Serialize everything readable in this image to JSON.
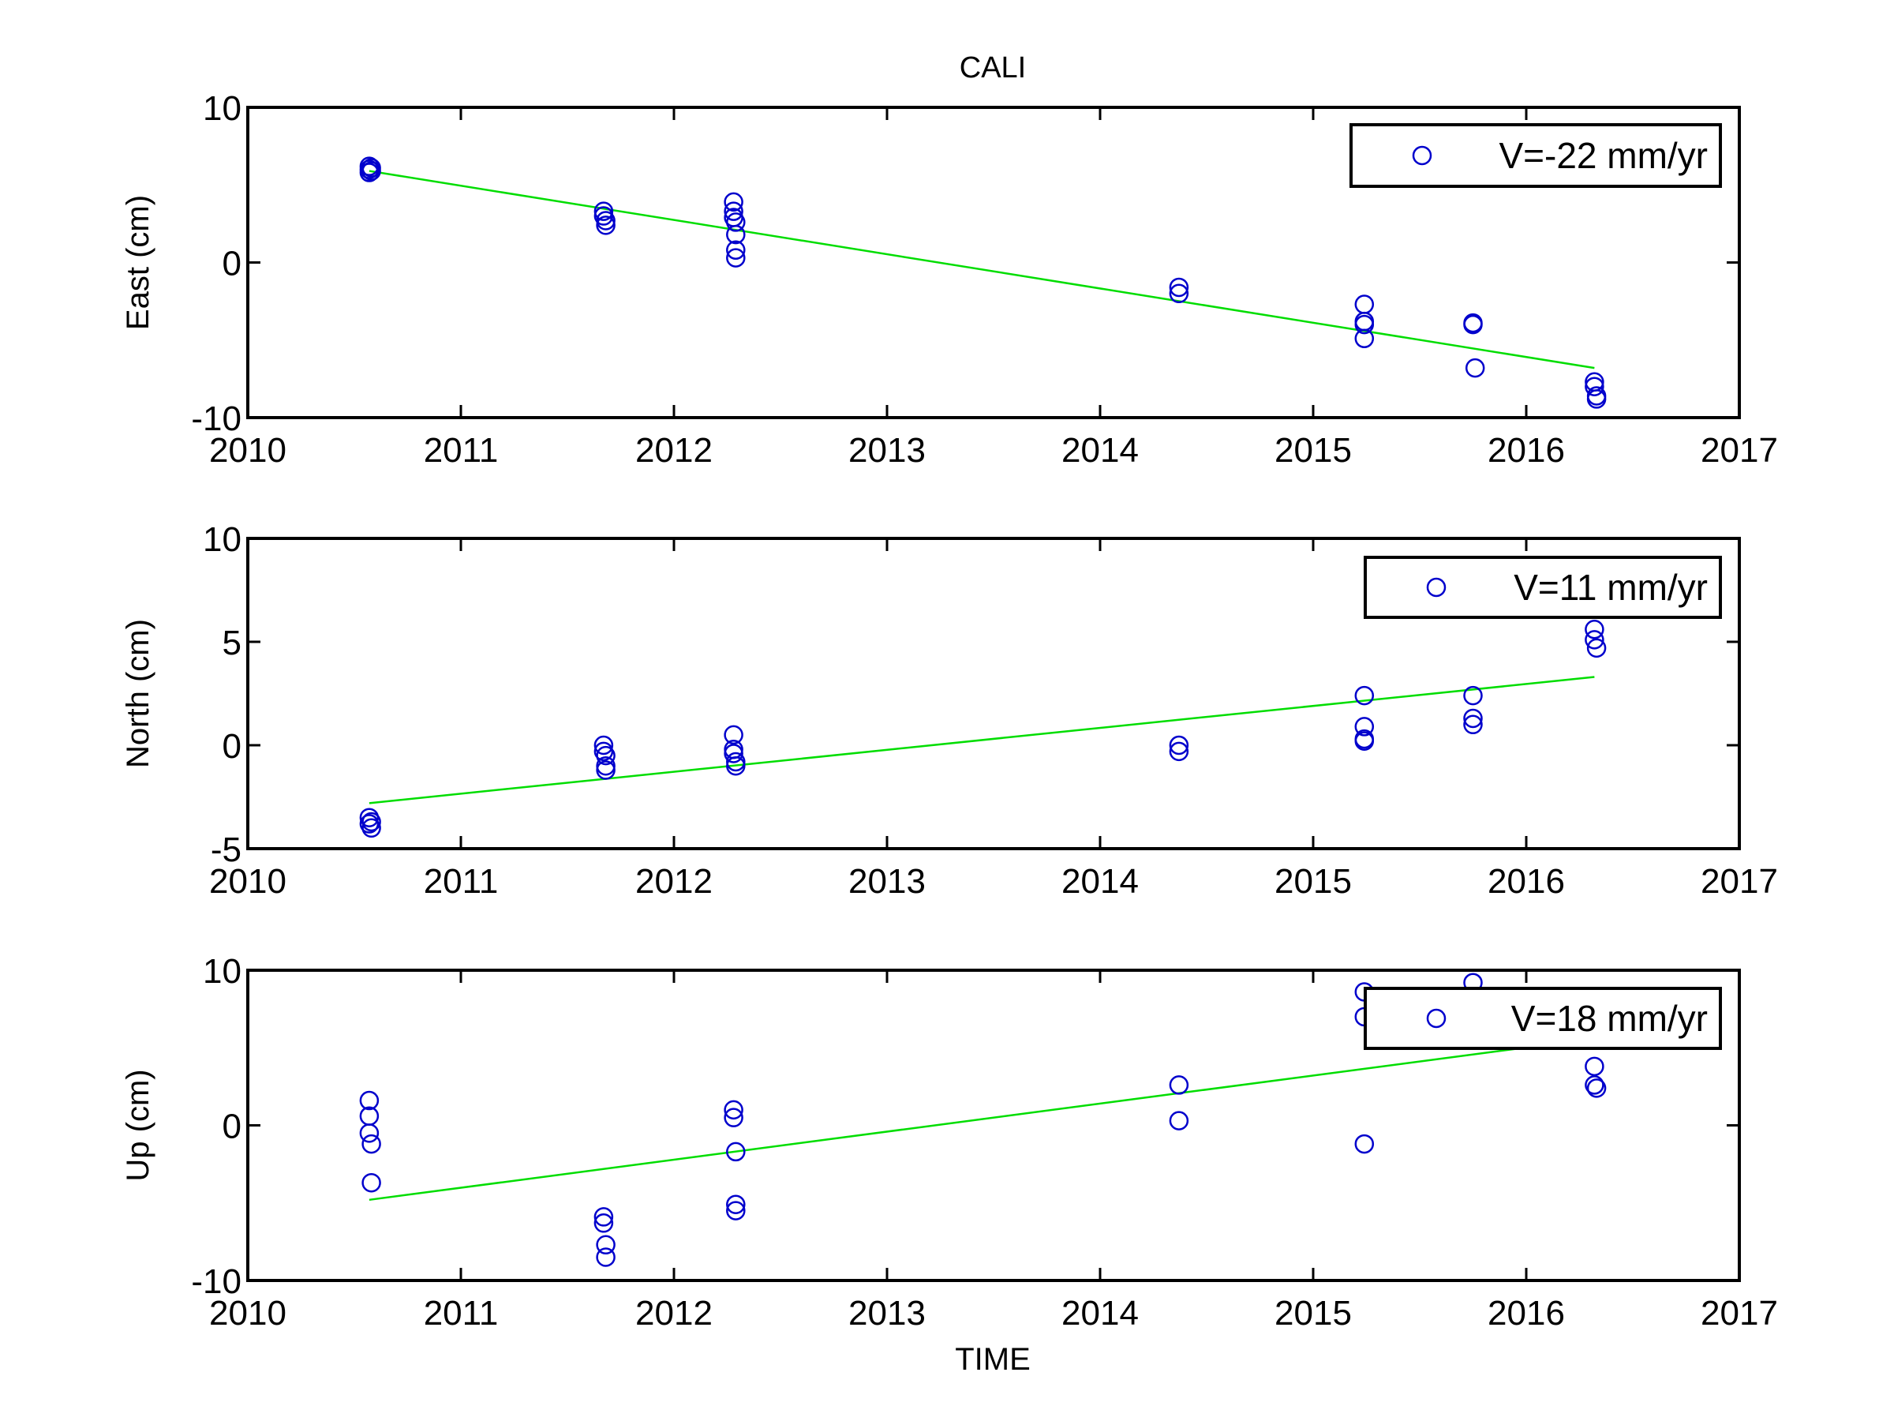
{
  "figure": {
    "title": "CALI",
    "xlabel": "TIME"
  },
  "colors": {
    "marker": "#0000cc",
    "fit_line": "#00dd00",
    "axes": "#000000",
    "background": "#ffffff"
  },
  "chart_data": [
    {
      "type": "scatter",
      "title": "CALI",
      "xlabel": "",
      "ylabel": "East (cm)",
      "xlim": [
        2010,
        2017
      ],
      "ylim": [
        -10,
        10
      ],
      "xticks": [
        "2010",
        "2011",
        "2012",
        "2013",
        "2014",
        "2015",
        "2016",
        "2017"
      ],
      "yticks": [
        "-10",
        "0",
        "10"
      ],
      "grid": false,
      "legend": {
        "label": "V=-22 mm/yr",
        "position": "top-right"
      },
      "points": [
        [
          2010.57,
          6.2
        ],
        [
          2010.57,
          6.0
        ],
        [
          2010.57,
          5.8
        ],
        [
          2010.58,
          6.1
        ],
        [
          2010.58,
          5.9
        ],
        [
          2011.67,
          3.3
        ],
        [
          2011.67,
          3.0
        ],
        [
          2011.68,
          2.7
        ],
        [
          2011.68,
          2.4
        ],
        [
          2012.28,
          3.9
        ],
        [
          2012.28,
          3.3
        ],
        [
          2012.28,
          2.9
        ],
        [
          2012.29,
          2.6
        ],
        [
          2012.29,
          1.8
        ],
        [
          2012.29,
          0.8
        ],
        [
          2012.29,
          0.3
        ],
        [
          2014.37,
          -1.6
        ],
        [
          2014.37,
          -2.0
        ],
        [
          2015.24,
          -2.7
        ],
        [
          2015.24,
          -3.8
        ],
        [
          2015.24,
          -4.0
        ],
        [
          2015.24,
          -4.9
        ],
        [
          2015.75,
          -3.9
        ],
        [
          2015.75,
          -4.0
        ],
        [
          2015.76,
          -6.8
        ],
        [
          2016.32,
          -7.7
        ],
        [
          2016.32,
          -8.0
        ],
        [
          2016.33,
          -8.6
        ],
        [
          2016.33,
          -8.8
        ]
      ],
      "fit": {
        "x": [
          2010.57,
          2016.32
        ],
        "y": [
          5.9,
          -6.8
        ]
      }
    },
    {
      "type": "scatter",
      "title": "",
      "xlabel": "",
      "ylabel": "North (cm)",
      "xlim": [
        2010,
        2017
      ],
      "ylim": [
        -5,
        10
      ],
      "xticks": [
        "2010",
        "2011",
        "2012",
        "2013",
        "2014",
        "2015",
        "2016",
        "2017"
      ],
      "yticks": [
        "-5",
        "0",
        "5",
        "10"
      ],
      "grid": false,
      "legend": {
        "label": "V=11 mm/yr",
        "position": "top-right"
      },
      "points": [
        [
          2010.57,
          -3.5
        ],
        [
          2010.57,
          -3.8
        ],
        [
          2010.58,
          -4.0
        ],
        [
          2010.58,
          -3.7
        ],
        [
          2011.67,
          0.0
        ],
        [
          2011.67,
          -0.3
        ],
        [
          2011.68,
          -0.5
        ],
        [
          2011.68,
          -1.0
        ],
        [
          2011.68,
          -1.2
        ],
        [
          2012.28,
          0.5
        ],
        [
          2012.28,
          -0.2
        ],
        [
          2012.28,
          -0.4
        ],
        [
          2012.29,
          -0.8
        ],
        [
          2012.29,
          -1.0
        ],
        [
          2014.37,
          0.0
        ],
        [
          2014.37,
          -0.3
        ],
        [
          2015.24,
          2.4
        ],
        [
          2015.24,
          0.9
        ],
        [
          2015.24,
          0.3
        ],
        [
          2015.24,
          0.2
        ],
        [
          2015.75,
          2.4
        ],
        [
          2015.75,
          1.3
        ],
        [
          2015.75,
          1.0
        ],
        [
          2016.32,
          5.6
        ],
        [
          2016.32,
          5.1
        ],
        [
          2016.33,
          4.7
        ]
      ],
      "fit": {
        "x": [
          2010.57,
          2016.32
        ],
        "y": [
          -2.8,
          3.3
        ]
      }
    },
    {
      "type": "scatter",
      "title": "",
      "xlabel": "TIME",
      "ylabel": "Up (cm)",
      "xlim": [
        2010,
        2017
      ],
      "ylim": [
        -10,
        10
      ],
      "xticks": [
        "2010",
        "2011",
        "2012",
        "2013",
        "2014",
        "2015",
        "2016",
        "2017"
      ],
      "yticks": [
        "-10",
        "0",
        "10"
      ],
      "grid": false,
      "legend": {
        "label": "V=18 mm/yr",
        "position": "top-right"
      },
      "points": [
        [
          2010.57,
          1.6
        ],
        [
          2010.57,
          0.6
        ],
        [
          2010.57,
          -0.5
        ],
        [
          2010.58,
          -1.2
        ],
        [
          2010.58,
          -3.7
        ],
        [
          2011.67,
          -5.9
        ],
        [
          2011.67,
          -6.3
        ],
        [
          2011.68,
          -7.7
        ],
        [
          2011.68,
          -8.5
        ],
        [
          2012.28,
          1.0
        ],
        [
          2012.28,
          0.5
        ],
        [
          2012.29,
          -1.7
        ],
        [
          2012.29,
          -5.1
        ],
        [
          2012.29,
          -5.5
        ],
        [
          2014.37,
          2.6
        ],
        [
          2014.37,
          0.3
        ],
        [
          2015.24,
          8.6
        ],
        [
          2015.24,
          7.0
        ],
        [
          2015.24,
          -1.2
        ],
        [
          2015.75,
          9.2
        ],
        [
          2016.32,
          3.8
        ],
        [
          2016.32,
          2.6
        ],
        [
          2016.33,
          2.4
        ]
      ],
      "fit": {
        "x": [
          2010.57,
          2016.32
        ],
        "y": [
          -4.8,
          5.6
        ]
      },
      "fit_visible_until_x": 2015.95
    }
  ]
}
